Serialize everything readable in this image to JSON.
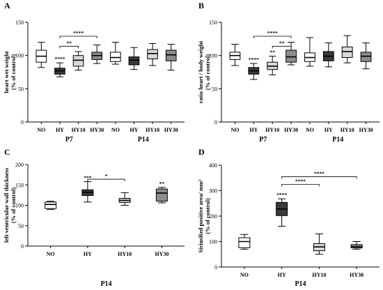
{
  "chart_data": [
    {
      "letter": "A",
      "type": "box",
      "ylabel_lines": [
        "heart wet weight",
        "(% of control)"
      ],
      "ylim": [
        0,
        150
      ],
      "yticks": [
        0,
        50,
        100,
        150
      ],
      "categories": [
        "NO",
        "HY",
        "HY10",
        "HY30",
        "NO",
        "HY",
        "HY10",
        "HY30"
      ],
      "groups": [
        {
          "label": "P7",
          "from": 0,
          "to": 3
        },
        {
          "label": "P14",
          "from": 4,
          "to": 7
        }
      ],
      "colors": [
        "#ffffff",
        "#3a3a3a",
        "#d9d9d9",
        "#8c8c8c",
        "#ffffff",
        "#3a3a3a",
        "#d9d9d9",
        "#8c8c8c"
      ],
      "boxes": [
        {
          "min": 82,
          "q1": 90,
          "median": 99,
          "q3": 108,
          "max": 120
        },
        {
          "min": 68,
          "q1": 72,
          "median": 77,
          "q3": 81,
          "max": 89
        },
        {
          "min": 78,
          "q1": 84,
          "median": 93,
          "q3": 100,
          "max": 106
        },
        {
          "min": 88,
          "q1": 94,
          "median": 100,
          "q3": 105,
          "max": 116
        },
        {
          "min": 87,
          "q1": 91,
          "median": 97,
          "q3": 105,
          "max": 120
        },
        {
          "min": 79,
          "q1": 86,
          "median": 93,
          "q3": 98,
          "max": 112
        },
        {
          "min": 85,
          "q1": 95,
          "median": 103,
          "q3": 109,
          "max": 118
        },
        {
          "min": 78,
          "q1": 92,
          "median": 101,
          "q3": 108,
          "max": 117
        }
      ],
      "star_labels": [
        {
          "index": 1,
          "text": "****"
        }
      ],
      "brackets": [
        {
          "from": 1,
          "to": 2,
          "text": "**",
          "y": 114
        },
        {
          "from": 1,
          "to": 3,
          "text": "****",
          "y": 129
        }
      ]
    },
    {
      "letter": "B",
      "type": "box",
      "ylabel_lines": [
        "ratio heart / body weight",
        "(% of control)"
      ],
      "ylim": [
        0,
        150
      ],
      "yticks": [
        0,
        50,
        100,
        150
      ],
      "categories": [
        "NO",
        "HY",
        "HY10",
        "HY30",
        "NO",
        "HY",
        "HY10",
        "HY30"
      ],
      "groups": [
        {
          "label": "P7",
          "from": 0,
          "to": 3
        },
        {
          "label": "P14",
          "from": 4,
          "to": 7
        }
      ],
      "colors": [
        "#ffffff",
        "#3a3a3a",
        "#d9d9d9",
        "#8c8c8c",
        "#ffffff",
        "#3a3a3a",
        "#d9d9d9",
        "#8c8c8c"
      ],
      "boxes": [
        {
          "min": 85,
          "q1": 94,
          "median": 100,
          "q3": 105,
          "max": 117
        },
        {
          "min": 64,
          "q1": 72,
          "median": 77,
          "q3": 82,
          "max": 88
        },
        {
          "min": 71,
          "q1": 79,
          "median": 84,
          "q3": 90,
          "max": 99
        },
        {
          "min": 86,
          "q1": 90,
          "median": 98,
          "q3": 108,
          "max": 120
        },
        {
          "min": 84,
          "q1": 91,
          "median": 97,
          "q3": 104,
          "max": 127
        },
        {
          "min": 83,
          "q1": 92,
          "median": 99,
          "q3": 106,
          "max": 119
        },
        {
          "min": 89,
          "q1": 97,
          "median": 106,
          "q3": 113,
          "max": 130
        },
        {
          "min": 80,
          "q1": 91,
          "median": 99,
          "q3": 105,
          "max": 119
        }
      ],
      "star_labels": [
        {
          "index": 1,
          "text": "****"
        },
        {
          "index": 2,
          "text": "**"
        }
      ],
      "brackets": [
        {
          "from": 2,
          "to": 3,
          "text": "**",
          "y": 114
        },
        {
          "from": 1,
          "to": 3,
          "text": "****",
          "y": 129
        }
      ]
    },
    {
      "letter": "C",
      "type": "box",
      "ylabel_lines": [
        "left ventricular wall thickness",
        "(% of control)"
      ],
      "ylim": [
        0,
        200
      ],
      "yticks": [
        0,
        50,
        100,
        150,
        200
      ],
      "categories": [
        "NO",
        "HY",
        "HY10",
        "HY30"
      ],
      "groups": [
        {
          "label": "P14",
          "from": 0,
          "to": 3
        }
      ],
      "colors": [
        "#ffffff",
        "#3a3a3a",
        "#d9d9d9",
        "#8c8c8c"
      ],
      "boxes": [
        {
          "min": 90,
          "q1": 92,
          "median": 102,
          "q3": 108,
          "max": 110
        },
        {
          "min": 108,
          "q1": 124,
          "median": 132,
          "q3": 138,
          "max": 158
        },
        {
          "min": 100,
          "q1": 107,
          "median": 112,
          "q3": 117,
          "max": 131
        },
        {
          "min": 106,
          "q1": 110,
          "median": 130,
          "q3": 140,
          "max": 144
        }
      ],
      "star_labels": [
        {
          "index": 1,
          "text": "***"
        },
        {
          "index": 3,
          "text": "**"
        }
      ],
      "brackets": [
        {
          "from": 1,
          "to": 2,
          "text": "*",
          "y": 164
        }
      ]
    },
    {
      "letter": "D",
      "type": "box",
      "ylabel_lines": [
        "SiriusRed positive area/ mm²",
        "(% of control)"
      ],
      "ylim": [
        0,
        400
      ],
      "yticks": [
        0,
        100,
        200,
        300,
        400
      ],
      "categories": [
        "NO",
        "HY",
        "HY10",
        "HY30"
      ],
      "groups": [
        {
          "label": "P14",
          "from": 0,
          "to": 3
        }
      ],
      "colors": [
        "#ffffff",
        "#3a3a3a",
        "#d9d9d9",
        "#8c8c8c"
      ],
      "boxes": [
        {
          "min": 70,
          "q1": 76,
          "median": 100,
          "q3": 115,
          "max": 128
        },
        {
          "min": 160,
          "q1": 202,
          "median": 228,
          "q3": 254,
          "max": 268
        },
        {
          "min": 50,
          "q1": 64,
          "median": 79,
          "q3": 92,
          "max": 130
        },
        {
          "min": 70,
          "q1": 75,
          "median": 80,
          "q3": 88,
          "max": 100
        }
      ],
      "star_labels": [
        {
          "index": 1,
          "text": "****"
        }
      ],
      "brackets": [
        {
          "from": 1,
          "to": 2,
          "text": "****",
          "y": 325
        },
        {
          "from": 1,
          "to": 3,
          "text": "****",
          "y": 355
        }
      ]
    }
  ]
}
